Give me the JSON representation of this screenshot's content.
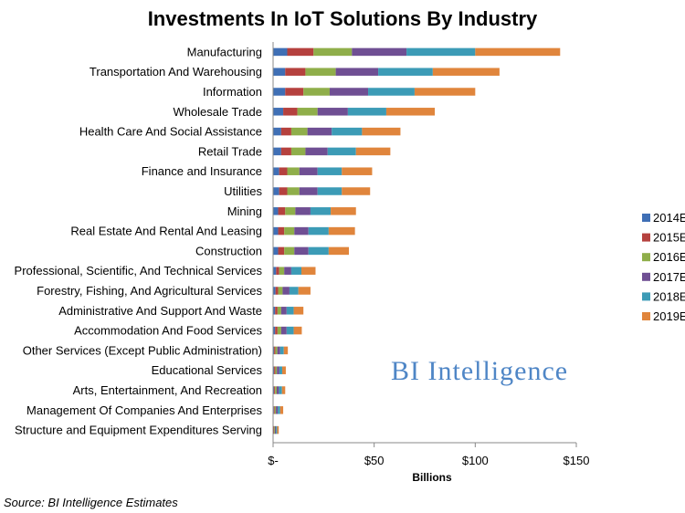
{
  "watermark": "BI Intelligence",
  "source_note": "Source: BI Intelligence Estimates",
  "chart_data": {
    "type": "bar",
    "orientation": "horizontal",
    "stacked": true,
    "title": "Investments In IoT Solutions By Industry",
    "xlabel": "Billions",
    "ylabel": "",
    "xlim": [
      0,
      150
    ],
    "xticks": [
      "$-",
      "$50",
      "$100",
      "$150"
    ],
    "grid": false,
    "legend_position": "right",
    "categories": [
      "Manufacturing",
      "Transportation And Warehousing",
      "Information",
      "Wholesale Trade",
      "Health Care And Social Assistance",
      "Retail Trade",
      "Finance and Insurance",
      "Utilities",
      "Mining",
      "Real Estate And Rental And Leasing",
      "Construction",
      "Professional, Scientific, And Technical Services",
      "Forestry, Fishing, And Agricultural Services",
      "Administrative And Support And Waste",
      "Accommodation And Food Services",
      "Other Services (Except Public Administration)",
      "Educational Services",
      "Arts, Entertainment, And Recreation",
      "Management Of Companies And Enterprises",
      "Structure and Equipment Expenditures Serving"
    ],
    "series": [
      {
        "name": "2014E",
        "color": "#3f6fb5",
        "values": [
          7,
          6,
          6,
          5,
          4,
          4,
          3,
          3,
          2.5,
          2.5,
          2.5,
          1.5,
          1.2,
          1,
          1,
          0.5,
          0.5,
          0.5,
          0.4,
          0.2
        ]
      },
      {
        "name": "2015E",
        "color": "#b5413e",
        "values": [
          13,
          10,
          9,
          7,
          5,
          5,
          4,
          4,
          3.5,
          3,
          3,
          1.5,
          1.3,
          1.2,
          1.2,
          0.6,
          0.6,
          0.5,
          0.4,
          0.3
        ]
      },
      {
        "name": "2016E",
        "color": "#8fae4a",
        "values": [
          19,
          15,
          13,
          10,
          8,
          7,
          6,
          6,
          5,
          5,
          5,
          2.5,
          2.2,
          1.8,
          1.8,
          1,
          0.8,
          0.8,
          0.6,
          0.4
        ]
      },
      {
        "name": "2017E",
        "color": "#6f4f93",
        "values": [
          27,
          21,
          19,
          15,
          12,
          11,
          9,
          9,
          7.5,
          7,
          7,
          3.5,
          3.4,
          2.7,
          2.7,
          1.4,
          1.2,
          1.1,
          0.9,
          0.5
        ]
      },
      {
        "name": "2018E",
        "color": "#3c9bb6",
        "values": [
          34,
          27,
          23,
          19,
          15,
          14,
          12,
          12,
          10,
          10,
          10,
          5,
          4.4,
          3.5,
          3.5,
          1.8,
          1.4,
          1.5,
          1.2,
          0.6
        ]
      },
      {
        "name": "2019E",
        "color": "#e0853c",
        "values": [
          42,
          33,
          30,
          24,
          19,
          17,
          15,
          14,
          12.5,
          13,
          10,
          7,
          6,
          4.8,
          4,
          2,
          1.8,
          1.6,
          1.5,
          0.8
        ]
      }
    ]
  }
}
